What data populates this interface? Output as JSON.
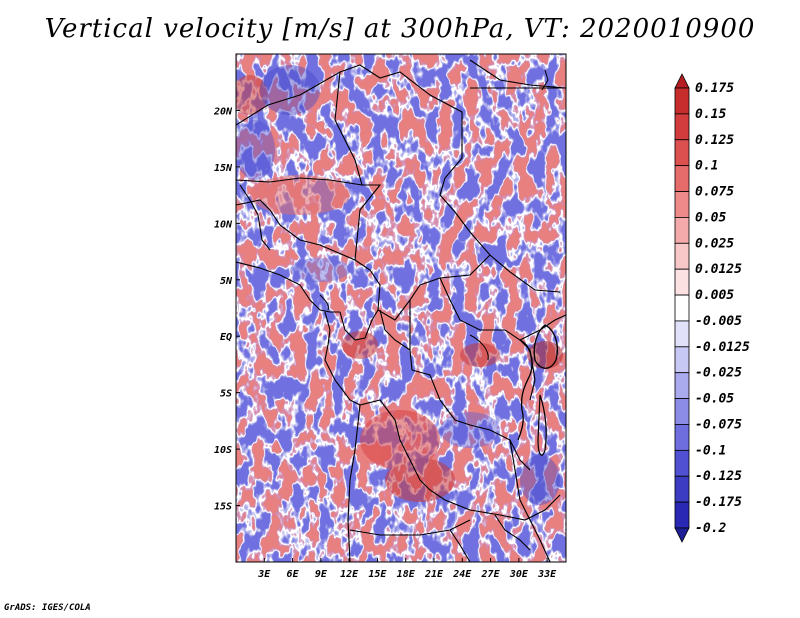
{
  "title": "Vertical velocity [m/s] at 300hPa, VT: 2020010900",
  "credit": "GrADS: IGES/COLA",
  "map": {
    "lon_range": [
      0,
      35
    ],
    "lat_range": [
      -20,
      25
    ],
    "lon_ticks": [
      {
        "lon": 3,
        "label": "3E"
      },
      {
        "lon": 6,
        "label": "6E"
      },
      {
        "lon": 9,
        "label": "9E"
      },
      {
        "lon": 12,
        "label": "12E"
      },
      {
        "lon": 15,
        "label": "15E"
      },
      {
        "lon": 18,
        "label": "18E"
      },
      {
        "lon": 21,
        "label": "21E"
      },
      {
        "lon": 24,
        "label": "24E"
      },
      {
        "lon": 27,
        "label": "27E"
      },
      {
        "lon": 30,
        "label": "30E"
      },
      {
        "lon": 33,
        "label": "33E"
      }
    ],
    "lat_ticks": [
      {
        "lat": 20,
        "label": "20N"
      },
      {
        "lat": 15,
        "label": "15N"
      },
      {
        "lat": 10,
        "label": "10N"
      },
      {
        "lat": 5,
        "label": "5N"
      },
      {
        "lat": 0,
        "label": "EQ"
      },
      {
        "lat": -5,
        "label": "5S"
      },
      {
        "lat": -10,
        "label": "10S"
      },
      {
        "lat": -15,
        "label": "15S"
      }
    ]
  },
  "colorbar": {
    "labels": [
      "0.175",
      "0.15",
      "0.125",
      "0.1",
      "0.075",
      "0.05",
      "0.025",
      "0.0125",
      "0.005",
      "-0.005",
      "-0.0125",
      "-0.025",
      "-0.05",
      "-0.075",
      "-0.1",
      "-0.125",
      "-0.175",
      "-0.2"
    ],
    "colors": [
      "#b41e23",
      "#c82d2d",
      "#d23c3c",
      "#dc5050",
      "#e66b6b",
      "#ee8a8a",
      "#f4aaaa",
      "#f8c8c8",
      "#fbe1e1",
      "#ffffff",
      "#e1e1fa",
      "#c8c8f5",
      "#aaaaee",
      "#8c8ce6",
      "#6e6ede",
      "#5050d2",
      "#3c3cc3",
      "#2828b4",
      "#1e1e96"
    ]
  }
}
